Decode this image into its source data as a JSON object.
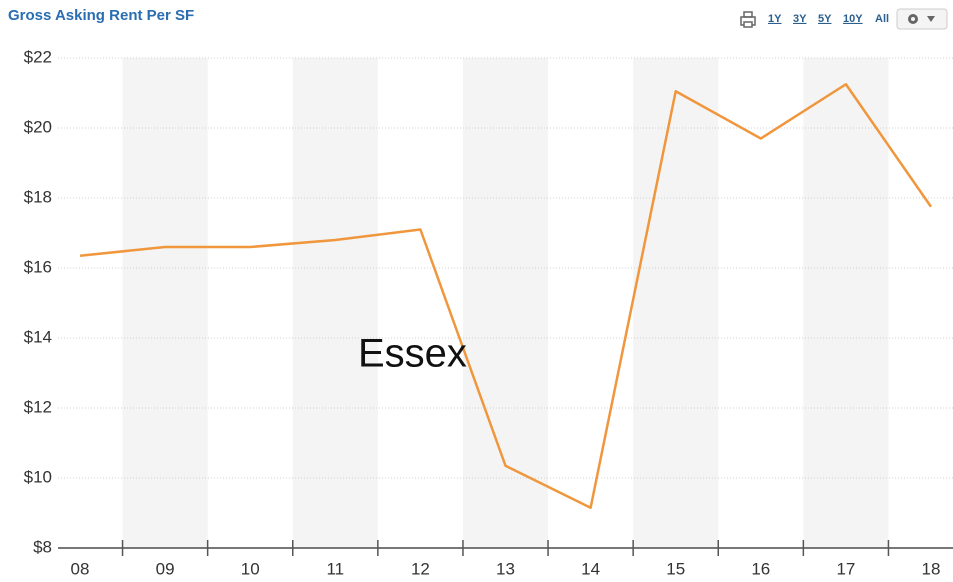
{
  "chart_data": {
    "type": "line",
    "title": "Gross Asking Rent Per SF",
    "annotation": "Essex",
    "toolbar": {
      "ranges": [
        "1Y",
        "3Y",
        "5Y",
        "10Y",
        "All"
      ],
      "active": "10Y"
    },
    "categories": [
      "08",
      "09",
      "10",
      "11",
      "12",
      "13",
      "14",
      "15",
      "16",
      "17",
      "18"
    ],
    "series": [
      {
        "name": "Essex",
        "color": "#f0963c",
        "values": [
          16.35,
          16.6,
          16.6,
          16.8,
          17.1,
          10.35,
          9.15,
          21.05,
          19.7,
          21.25,
          17.75
        ]
      }
    ],
    "ylim": [
      8,
      22
    ],
    "yticks": [
      {
        "value": 8,
        "label": "$8"
      },
      {
        "value": 10,
        "label": "$10"
      },
      {
        "value": 12,
        "label": "$12"
      },
      {
        "value": 14,
        "label": "$14"
      },
      {
        "value": 16,
        "label": "$16"
      },
      {
        "value": 18,
        "label": "$18"
      },
      {
        "value": 20,
        "label": "$20"
      },
      {
        "value": 22,
        "label": "$22"
      }
    ],
    "grid": true,
    "alternate_bands": true
  }
}
